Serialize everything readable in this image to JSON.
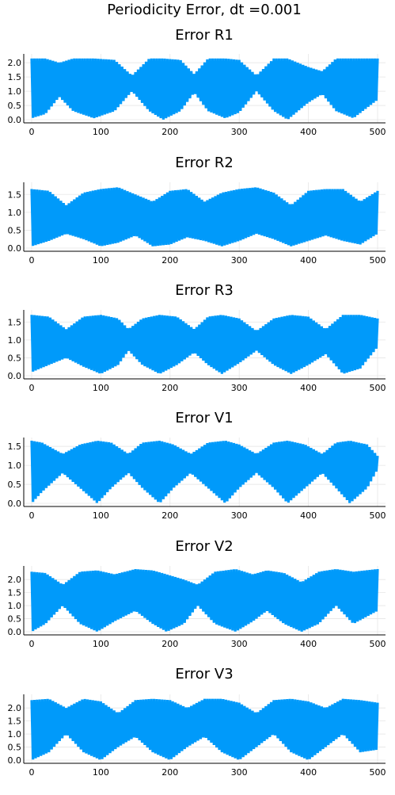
{
  "figure": {
    "suptitle": "Periodicity Error, dt =0.001",
    "series_color": "#009AFA"
  },
  "chart_data": [
    {
      "type": "line",
      "title": "Error R1",
      "xlim": [
        0,
        500
      ],
      "ylim": [
        0,
        2.2
      ],
      "xticks": [
        "0",
        "100",
        "200",
        "300",
        "400",
        "500"
      ],
      "yticks": [
        "0.0",
        "0.5",
        "1.0",
        "1.5",
        "2.0"
      ],
      "grid": true,
      "legend": "none",
      "envelope": {
        "x": [
          0,
          20,
          40,
          60,
          90,
          120,
          145,
          170,
          190,
          215,
          235,
          255,
          280,
          300,
          325,
          350,
          370,
          400,
          420,
          440,
          465,
          500
        ],
        "upper": [
          2.15,
          2.15,
          2.0,
          2.15,
          2.15,
          2.1,
          1.55,
          2.15,
          2.15,
          2.1,
          1.6,
          2.15,
          2.15,
          2.1,
          1.55,
          2.15,
          2.15,
          1.85,
          1.7,
          2.15,
          2.15,
          2.15
        ],
        "lower": [
          0.05,
          0.2,
          0.8,
          0.3,
          0.05,
          0.3,
          1.0,
          0.3,
          0.0,
          0.3,
          0.95,
          0.3,
          0.05,
          0.25,
          1.0,
          0.3,
          0.0,
          0.6,
          0.9,
          0.3,
          0.05,
          0.7
        ]
      }
    },
    {
      "type": "line",
      "title": "Error R2",
      "xlim": [
        0,
        500
      ],
      "ylim": [
        0,
        1.75
      ],
      "xticks": [
        "0",
        "100",
        "200",
        "300",
        "400",
        "500"
      ],
      "yticks": [
        "0.0",
        "0.5",
        "1.0",
        "1.5"
      ],
      "grid": true,
      "legend": "none",
      "envelope": {
        "x": [
          0,
          25,
          50,
          75,
          100,
          125,
          150,
          175,
          200,
          225,
          250,
          275,
          300,
          325,
          350,
          375,
          400,
          425,
          450,
          475,
          500
        ],
        "upper": [
          1.65,
          1.6,
          1.2,
          1.55,
          1.65,
          1.7,
          1.5,
          1.3,
          1.6,
          1.65,
          1.3,
          1.55,
          1.65,
          1.7,
          1.55,
          1.2,
          1.6,
          1.65,
          1.65,
          1.3,
          1.6
        ],
        "lower": [
          0.05,
          0.2,
          0.4,
          0.25,
          0.05,
          0.15,
          0.35,
          0.05,
          0.1,
          0.3,
          0.2,
          0.05,
          0.2,
          0.4,
          0.25,
          0.05,
          0.2,
          0.35,
          0.2,
          0.1,
          0.4
        ]
      }
    },
    {
      "type": "line",
      "title": "Error R3",
      "xlim": [
        0,
        500
      ],
      "ylim": [
        0,
        1.75
      ],
      "xticks": [
        "0",
        "100",
        "200",
        "300",
        "400",
        "500"
      ],
      "yticks": [
        "0.0",
        "0.5",
        "1.0",
        "1.5"
      ],
      "grid": true,
      "legend": "none",
      "envelope": {
        "x": [
          0,
          25,
          50,
          75,
          100,
          125,
          140,
          160,
          185,
          210,
          235,
          255,
          275,
          300,
          325,
          350,
          375,
          400,
          425,
          450,
          475,
          500
        ],
        "upper": [
          1.7,
          1.65,
          1.3,
          1.65,
          1.7,
          1.6,
          1.3,
          1.6,
          1.7,
          1.65,
          1.3,
          1.65,
          1.7,
          1.6,
          1.25,
          1.6,
          1.7,
          1.65,
          1.3,
          1.7,
          1.7,
          1.6
        ],
        "lower": [
          0.1,
          0.3,
          0.5,
          0.25,
          0.05,
          0.3,
          0.7,
          0.3,
          0.05,
          0.3,
          0.65,
          0.3,
          0.05,
          0.35,
          0.7,
          0.3,
          0.05,
          0.3,
          0.6,
          0.05,
          0.2,
          0.8
        ]
      }
    },
    {
      "type": "line",
      "title": "Error V1",
      "xlim": [
        0,
        500
      ],
      "ylim": [
        0,
        1.65
      ],
      "xticks": [
        "0",
        "100",
        "200",
        "300",
        "400",
        "500"
      ],
      "yticks": [
        "0.0",
        "0.5",
        "1.0",
        "1.5"
      ],
      "grid": true,
      "legend": "none",
      "envelope": {
        "x": [
          0,
          15,
          45,
          70,
          95,
          115,
          140,
          160,
          185,
          205,
          230,
          255,
          280,
          300,
          325,
          350,
          370,
          395,
          420,
          440,
          460,
          485,
          500
        ],
        "upper": [
          1.65,
          1.6,
          1.3,
          1.55,
          1.65,
          1.6,
          1.3,
          1.6,
          1.65,
          1.55,
          1.3,
          1.6,
          1.65,
          1.55,
          1.3,
          1.6,
          1.65,
          1.55,
          1.3,
          1.6,
          1.65,
          1.55,
          1.25
        ],
        "lower": [
          0.0,
          0.3,
          0.8,
          0.4,
          0.0,
          0.4,
          0.8,
          0.4,
          0.0,
          0.4,
          0.8,
          0.4,
          0.0,
          0.4,
          0.8,
          0.4,
          0.0,
          0.4,
          0.8,
          0.4,
          0.0,
          0.4,
          0.9
        ]
      }
    },
    {
      "type": "line",
      "title": "Error V2",
      "xlim": [
        0,
        500
      ],
      "ylim": [
        0,
        2.4
      ],
      "xticks": [
        "0",
        "100",
        "200",
        "300",
        "400",
        "500"
      ],
      "yticks": [
        "0.0",
        "0.5",
        "1.0",
        "1.5",
        "2.0"
      ],
      "grid": true,
      "legend": "none",
      "envelope": {
        "x": [
          0,
          20,
          45,
          70,
          95,
          120,
          150,
          175,
          195,
          220,
          240,
          265,
          295,
          320,
          340,
          365,
          390,
          415,
          440,
          465,
          500
        ],
        "upper": [
          2.3,
          2.25,
          1.8,
          2.3,
          2.35,
          2.2,
          2.4,
          2.35,
          2.2,
          2.0,
          1.8,
          2.3,
          2.4,
          2.2,
          2.35,
          2.25,
          1.9,
          2.3,
          2.4,
          2.3,
          2.4
        ],
        "lower": [
          0.0,
          0.3,
          1.0,
          0.3,
          0.0,
          0.4,
          0.8,
          0.3,
          0.0,
          0.3,
          1.0,
          0.3,
          0.0,
          0.4,
          0.8,
          0.3,
          0.0,
          0.3,
          1.0,
          0.3,
          0.8
        ]
      }
    },
    {
      "type": "line",
      "title": "Error V3",
      "xlim": [
        0,
        500
      ],
      "ylim": [
        0,
        2.4
      ],
      "xticks": [
        "0",
        "100",
        "200",
        "300",
        "400",
        "500"
      ],
      "yticks": [
        "0.0",
        "0.5",
        "1.0",
        "1.5",
        "2.0"
      ],
      "grid": true,
      "legend": "none",
      "envelope": {
        "x": [
          0,
          25,
          50,
          75,
          100,
          125,
          150,
          175,
          200,
          225,
          250,
          275,
          300,
          325,
          350,
          375,
          400,
          425,
          450,
          475,
          500
        ],
        "upper": [
          2.3,
          2.35,
          2.0,
          2.35,
          2.25,
          1.8,
          2.3,
          2.35,
          2.3,
          2.0,
          2.35,
          2.35,
          2.2,
          1.8,
          2.3,
          2.35,
          2.25,
          2.0,
          2.35,
          2.3,
          2.2
        ],
        "lower": [
          0.0,
          0.3,
          1.0,
          0.3,
          0.0,
          0.5,
          0.9,
          0.3,
          0.0,
          0.5,
          0.9,
          0.3,
          0.0,
          0.5,
          1.0,
          0.3,
          0.0,
          0.5,
          1.0,
          0.3,
          0.4
        ]
      }
    }
  ]
}
